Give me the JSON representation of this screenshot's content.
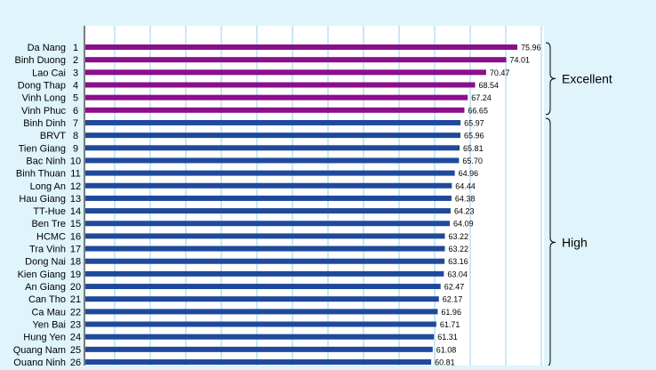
{
  "chart_data": {
    "type": "bar",
    "orientation": "horizontal",
    "xlim": [
      0,
      80
    ],
    "grid": true,
    "legend": "none",
    "colors": {
      "excellent_bar": "#8b0f8b",
      "high_bar": "#1f4a9c",
      "background": "#dff4fb",
      "plot_background": "#ffffff",
      "grid": "#c8e9f6",
      "axis": "#000000",
      "text": "#000000"
    },
    "categories": [
      "Da Nang",
      "Binh Duong",
      "Lao Cai",
      "Dong Thap",
      "Vinh Long",
      "Vinh Phuc",
      "Binh Dinh",
      "BRVT",
      "Tien Giang",
      "Bac Ninh",
      "Binh Thuan",
      "Long An",
      "Hau Giang",
      "TT-Hue",
      "Ben Tre",
      "HCMC",
      "Tra Vinh",
      "Dong Nai",
      "Kien Giang",
      "An Giang",
      "Can Tho",
      "Ca Mau",
      "Yen Bai",
      "Hung Yen",
      "Quang Nam",
      "Quang Ninh"
    ],
    "ranks": [
      "1",
      "2",
      "3",
      "4",
      "5",
      "6",
      "7",
      "8",
      "9",
      "10",
      "11",
      "12",
      "13",
      "14",
      "15",
      "16",
      "17",
      "18",
      "19",
      "20",
      "21",
      "22",
      "23",
      "24",
      "25",
      "26"
    ],
    "values": [
      75.96,
      74.01,
      70.47,
      68.54,
      67.24,
      66.65,
      65.97,
      65.96,
      65.81,
      65.7,
      64.96,
      64.44,
      64.38,
      64.23,
      64.09,
      63.22,
      63.22,
      63.16,
      63.04,
      62.47,
      62.17,
      61.96,
      61.71,
      61.31,
      61.08,
      60.81
    ],
    "value_labels": [
      "75.96",
      "74.01",
      "70.47",
      "68.54",
      "67.24",
      "66.65",
      "65.97",
      "65.96",
      "65.81",
      "65.70",
      "64.96",
      "64.44",
      "64.38",
      "64.23",
      "64.09",
      "63.22",
      "63.22",
      "63.16",
      "63.04",
      "62.47",
      "62.17",
      "61.96",
      "61.71",
      "61.31",
      "61.08",
      "60.81"
    ],
    "groups": [
      {
        "label": "Excellent",
        "start": 0,
        "end": 5,
        "color_key": "excellent_bar"
      },
      {
        "label": "High",
        "start": 6,
        "end": 25,
        "color_key": "high_bar"
      }
    ]
  }
}
